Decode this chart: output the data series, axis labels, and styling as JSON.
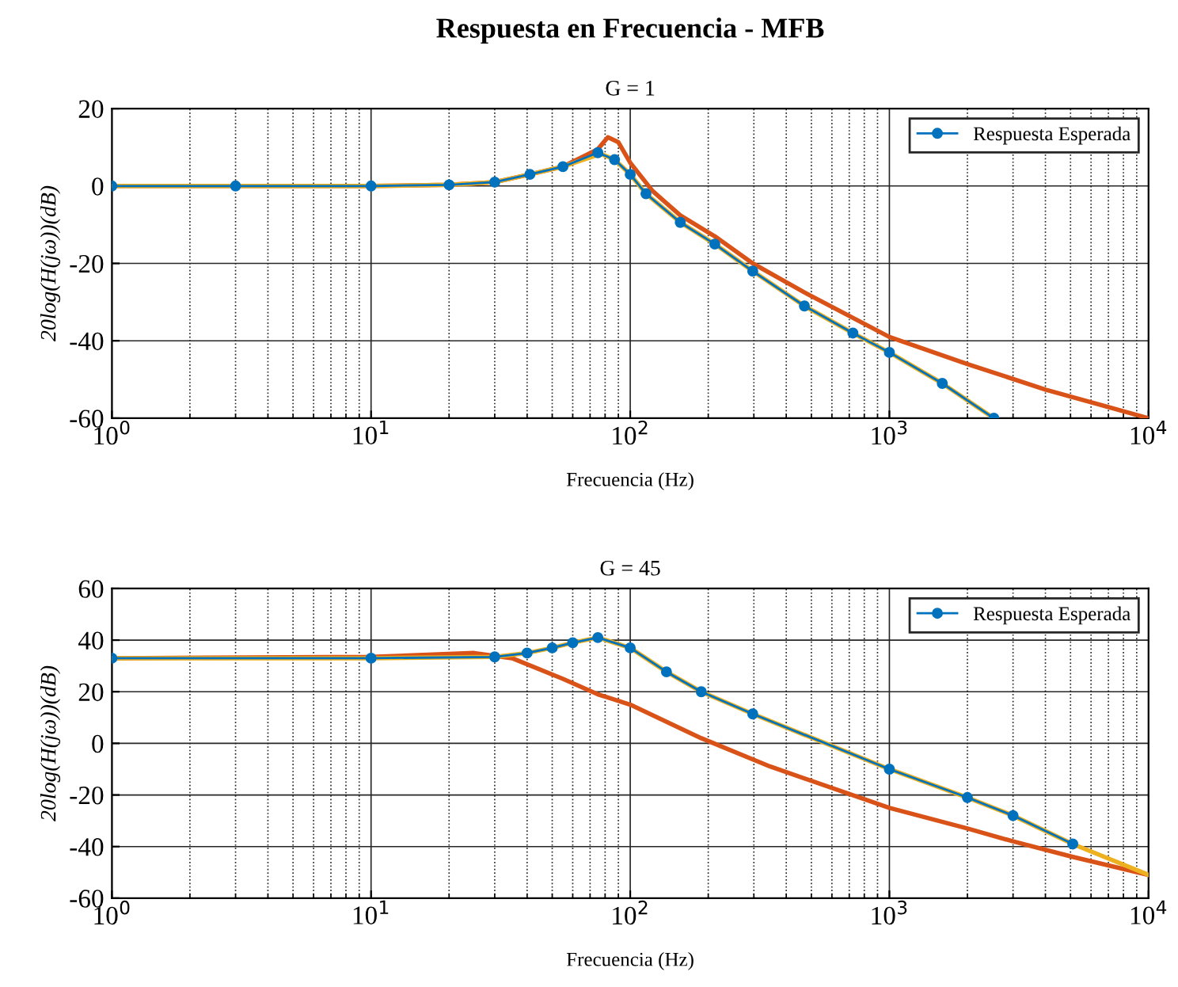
{
  "chart_data": [
    {
      "type": "line",
      "annotations": [
        "Respuesta en Frecuencia - MFB"
      ],
      "title": "G = 1",
      "xlabel": "Frecuencia (Hz)",
      "ylabel": "20log(H(jω))(dB)",
      "log": "x",
      "grid": true,
      "legend": "top right",
      "xlim": [
        1,
        10000
      ],
      "xticks": [
        {
          "value": 1,
          "label": "10$^{0}$"
        },
        {
          "value": 10,
          "label": "10$^{1}$"
        },
        {
          "value": 100,
          "label": "10$^{2}$"
        },
        {
          "value": 1000,
          "label": "10$^{3}$"
        },
        {
          "value": 10000,
          "label": "10$^{4}$"
        }
      ],
      "ylim": [
        -60,
        20
      ],
      "yticks": [
        -60,
        -40,
        -20,
        0,
        20
      ],
      "series": [
        {
          "name": "Respuesta Esperada",
          "color": "#0072bd",
          "marker": "circle",
          "x": [
            1,
            3,
            10,
            20,
            30,
            41,
            55,
            75,
            87,
            100,
            115,
            156,
            212,
            297,
            470,
            723,
            1000,
            1600,
            2530
          ],
          "values": [
            0,
            0,
            0,
            0.3,
            1,
            3,
            5,
            8.6,
            6.8,
            3,
            -2,
            -9.4,
            -15,
            -22,
            -31,
            -38,
            -43,
            -51,
            -60
          ]
        },
        {
          "color": "#d95319",
          "x": [
            1,
            3,
            10,
            20,
            30,
            41,
            55,
            75,
            82,
            90,
            100,
            122,
            156,
            212,
            297,
            470,
            1000,
            2000,
            4000,
            10000
          ],
          "values": [
            0,
            0,
            0,
            0.3,
            1,
            3,
            5,
            9.5,
            12.6,
            11.3,
            6,
            -1.3,
            -7.6,
            -13,
            -20,
            -27.5,
            -39,
            -46,
            -52.6,
            -60
          ]
        },
        {
          "color": "#edb120",
          "x": [
            1,
            3,
            10,
            20,
            30,
            41,
            55,
            77,
            87,
            100,
            115,
            156,
            212,
            297,
            470,
            723,
            1000,
            1600,
            2530
          ],
          "values": [
            0,
            0,
            0,
            0.3,
            1,
            3,
            5,
            8.3,
            6.8,
            3,
            -2,
            -9.4,
            -15,
            -22,
            -31,
            -38,
            -43,
            -51,
            -60
          ]
        }
      ]
    },
    {
      "type": "line",
      "title": "G = 45",
      "xlabel": "Frecuencia (Hz)",
      "ylabel": "20log(H(jω))(dB)",
      "log": "x",
      "grid": true,
      "legend": "top right",
      "xlim": [
        1,
        10000
      ],
      "xticks": [
        {
          "value": 1,
          "label": "10$^{0}$"
        },
        {
          "value": 10,
          "label": "10$^{1}$"
        },
        {
          "value": 100,
          "label": "10$^{2}$"
        },
        {
          "value": 1000,
          "label": "10$^{3}$"
        },
        {
          "value": 10000,
          "label": "10$^{4}$"
        }
      ],
      "ylim": [
        -60,
        60
      ],
      "yticks": [
        -60,
        -40,
        -20,
        0,
        20,
        40,
        60
      ],
      "series": [
        {
          "name": "Respuesta Esperada",
          "color": "#0072bd",
          "marker": "circle",
          "x": [
            1,
            10,
            30,
            40,
            50,
            60,
            75,
            100,
            138,
            188,
            297,
            1000,
            2000,
            3000,
            5100
          ],
          "values": [
            33,
            33,
            33.5,
            35,
            37,
            39,
            41,
            37,
            27.7,
            20,
            11.4,
            -10,
            -21,
            -28,
            -39
          ]
        },
        {
          "color": "#d95319",
          "x": [
            1,
            10,
            25,
            35,
            55,
            75,
            100,
            188,
            347,
            1000,
            2000,
            3000,
            5100,
            10000
          ],
          "values": [
            33,
            33.5,
            35,
            33,
            25,
            19,
            15,
            2,
            -9,
            -25,
            -33,
            -38,
            -44,
            -51
          ]
        },
        {
          "color": "#edb120",
          "x": [
            1,
            10,
            30,
            40,
            50,
            60,
            75,
            100,
            138,
            188,
            297,
            1000,
            2000,
            3000,
            5100,
            10000
          ],
          "values": [
            33,
            33,
            33.5,
            35,
            37,
            39,
            41,
            37,
            27.7,
            20,
            11.4,
            -10,
            -21,
            -28,
            -39,
            -51
          ]
        }
      ]
    }
  ]
}
